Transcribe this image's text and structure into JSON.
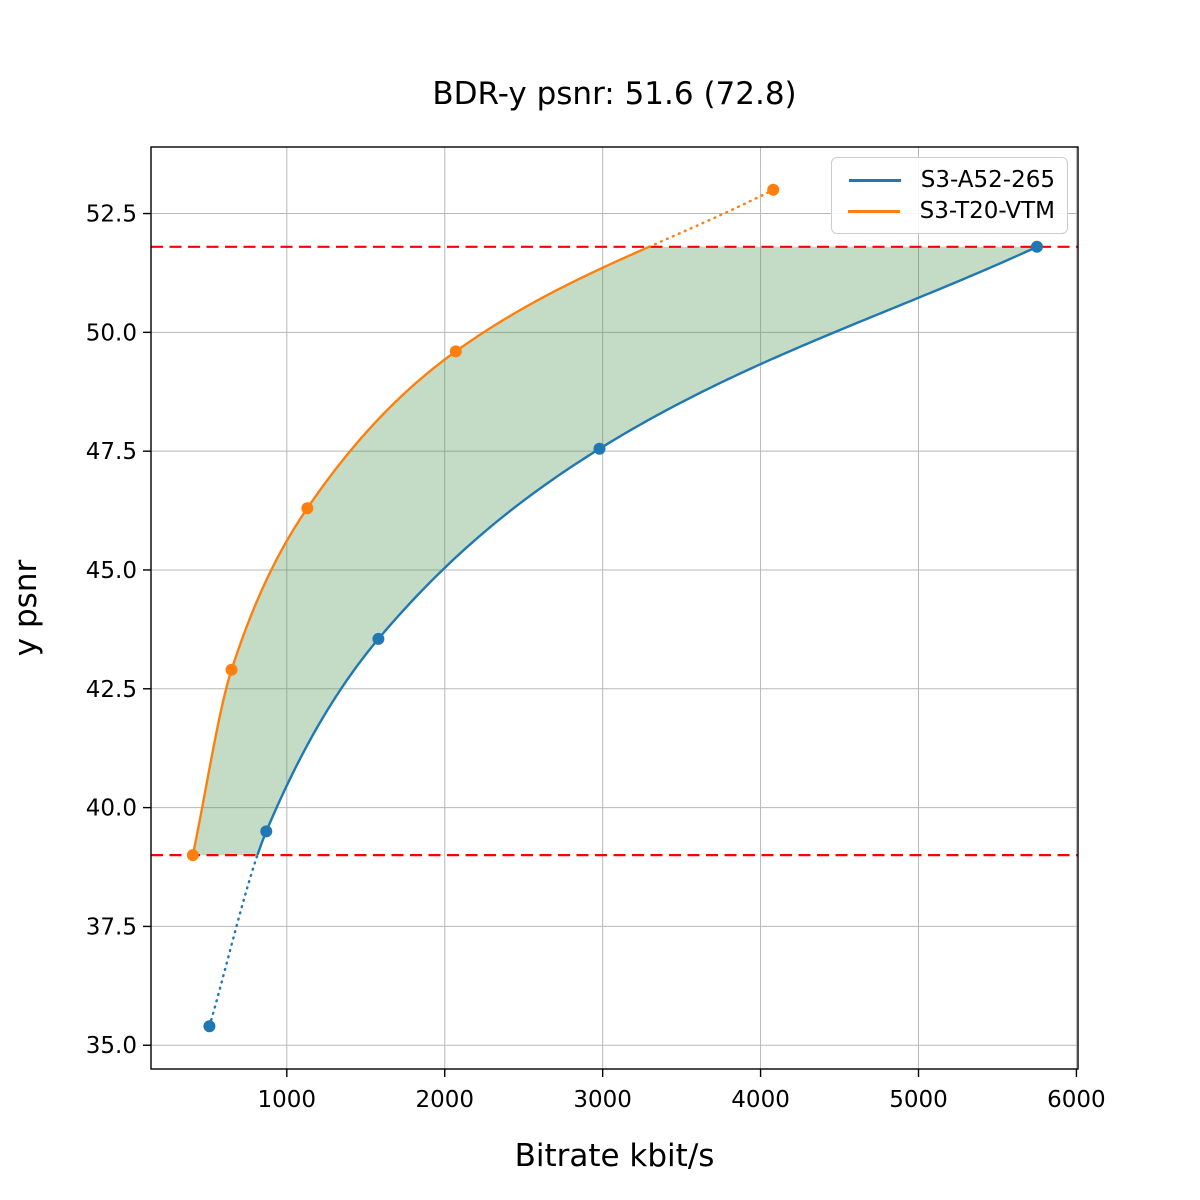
{
  "chart_data": {
    "type": "line",
    "title": "BDR-y psnr: 51.6 (72.8)",
    "xlabel": "Bitrate kbit/s",
    "ylabel": "y psnr",
    "xlim": [
      140,
      6010
    ],
    "ylim": [
      34.5,
      53.9
    ],
    "xticks": [
      1000,
      2000,
      3000,
      4000,
      5000,
      6000
    ],
    "xtick_labels": [
      "1000",
      "2000",
      "3000",
      "4000",
      "5000",
      "6000"
    ],
    "yticks": [
      35.0,
      37.5,
      40.0,
      42.5,
      45.0,
      47.5,
      50.0,
      52.5
    ],
    "ytick_labels": [
      "35.0",
      "37.5",
      "40.0",
      "42.5",
      "45.0",
      "47.5",
      "50.0",
      "52.5"
    ],
    "grid": true,
    "grid_color": "#b8b8b8",
    "legend_position": "upper right",
    "series": [
      {
        "name": "S3-A52-265",
        "color": "#1f77b4",
        "marker": "o",
        "x": [
          510,
          870,
          1580,
          2980,
          5750
        ],
        "y": [
          35.4,
          39.5,
          43.55,
          47.55,
          51.8
        ]
      },
      {
        "name": "S3-T20-VTM",
        "color": "#ff7f0e",
        "marker": "o",
        "x": [
          405,
          650,
          1130,
          2070,
          4080
        ],
        "y": [
          39.0,
          42.9,
          46.3,
          49.6,
          53.0
        ]
      }
    ],
    "bd_integration_bounds": {
      "lower_psnr": 39.0,
      "upper_psnr": 51.8,
      "line_color": "#ff0000",
      "line_style": "dashed"
    },
    "shaded_region_color_rgba": [
      75,
      150,
      80,
      0.33
    ],
    "bdr_value": "51.6",
    "bdr_value_paren": "72.8"
  }
}
